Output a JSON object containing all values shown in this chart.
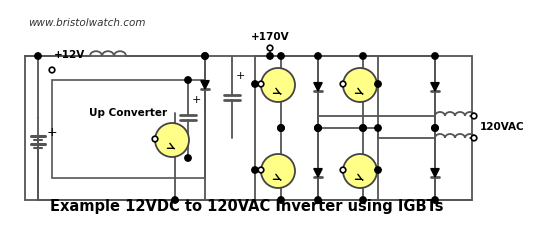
{
  "title": "Example 12VDC to 120VAC Inverter using IGBTs",
  "watermark": "www.bristolwatch.com",
  "bg_color": "#ffffff",
  "line_color": "#555555",
  "dot_color": "#000000",
  "igbt_fill": "#ffff88",
  "title_fontsize": 10.5,
  "watermark_fontsize": 7.5,
  "label_12v": "+12V",
  "label_170v": "+170V",
  "label_120vac": "120VAC",
  "label_upconv": "Up Converter",
  "label_plus": "+"
}
